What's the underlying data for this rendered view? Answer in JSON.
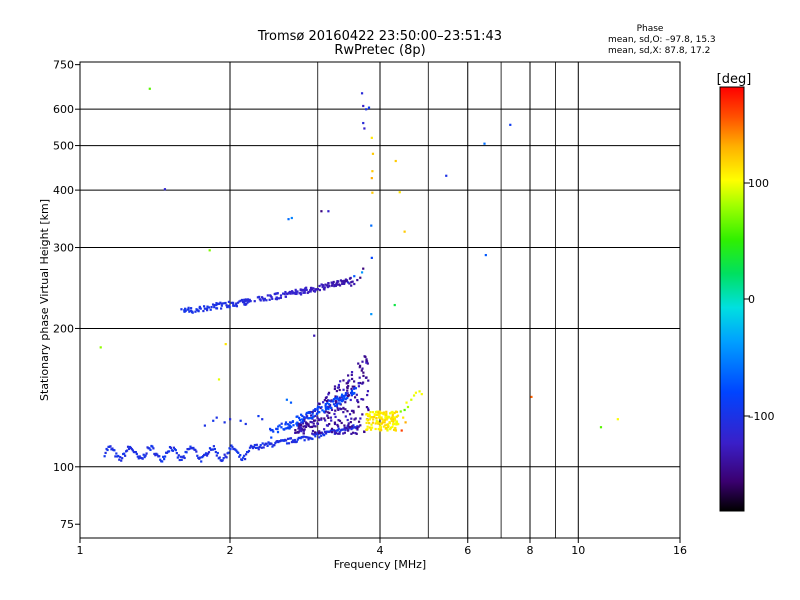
{
  "header": {
    "title_line1": "Tromsø 20160422 23:50:00–23:51:43",
    "title_line2": "RwPretec (8p)",
    "phase_title": "Phase",
    "phase_o": "mean, sd,O: –97.8, 15.3",
    "phase_x": "mean, sd,X:  87.8, 17.2"
  },
  "colorbar": {
    "unit_label": "[deg]",
    "min": -180,
    "max": 180,
    "ticks": [
      "100",
      "0",
      "–100"
    ]
  },
  "chart_data": {
    "type": "scatter",
    "xlabel": "Frequency [MHz]",
    "ylabel": "Stationary phase Virtual Height [km]",
    "xscale": "log2",
    "yscale": "log",
    "xlim": [
      1,
      16
    ],
    "ylim": [
      70,
      760
    ],
    "x_ticks": [
      1,
      2,
      4,
      6,
      8,
      10,
      16
    ],
    "x_tick_labels": [
      "1",
      "2",
      "4",
      "6",
      "8",
      "10",
      "16"
    ],
    "x_grid": [
      1,
      2,
      3,
      4,
      5,
      6,
      7,
      8,
      9,
      10,
      11,
      12,
      13,
      14,
      15,
      16
    ],
    "x_grid_major": [
      2,
      4,
      6,
      8,
      10
    ],
    "y_ticks": [
      75,
      100,
      200,
      300,
      400,
      500,
      600,
      750
    ],
    "y_tick_labels": [
      "75",
      "100",
      "200",
      "300",
      "400",
      "500",
      "600",
      "750"
    ],
    "y_grid": [
      100,
      200,
      300,
      400,
      500,
      600
    ],
    "grid": true,
    "color_scale": "rainbow phase",
    "points": [
      [
        1.38,
        665,
        60
      ],
      [
        1.48,
        402,
        -115
      ],
      [
        1.82,
        296,
        70
      ],
      [
        1.1,
        182,
        75
      ],
      [
        1.96,
        185,
        110
      ],
      [
        1.9,
        155,
        95
      ],
      [
        3.68,
        650,
        -110
      ],
      [
        3.7,
        610,
        -120
      ],
      [
        3.75,
        600,
        -100
      ],
      [
        3.8,
        605,
        -90
      ],
      [
        3.7,
        560,
        -110
      ],
      [
        3.72,
        545,
        -120
      ],
      [
        3.85,
        520,
        110
      ],
      [
        3.87,
        480,
        120
      ],
      [
        3.86,
        440,
        120
      ],
      [
        3.85,
        425,
        130
      ],
      [
        3.86,
        395,
        120
      ],
      [
        3.84,
        335,
        -60
      ],
      [
        3.85,
        285,
        -80
      ],
      [
        3.84,
        215,
        -40
      ],
      [
        4.3,
        463,
        120
      ],
      [
        4.38,
        396,
        110
      ],
      [
        4.48,
        325,
        120
      ],
      [
        4.28,
        225,
        30
      ],
      [
        5.43,
        430,
        -100
      ],
      [
        6.48,
        505,
        -60
      ],
      [
        6.52,
        289,
        -70
      ],
      [
        7.3,
        555,
        -90
      ],
      [
        8.05,
        142,
        150
      ],
      [
        11.1,
        122,
        60
      ],
      [
        12.0,
        127,
        100
      ],
      [
        2.62,
        346,
        -60
      ],
      [
        2.66,
        348,
        -50
      ],
      [
        3.05,
        360,
        -150
      ],
      [
        3.15,
        360,
        -120
      ],
      [
        2.6,
        140,
        -60
      ],
      [
        2.65,
        138,
        -70
      ],
      [
        2.95,
        193,
        -130
      ],
      [
        2.28,
        129,
        -90
      ],
      [
        2.32,
        127,
        -100
      ],
      [
        2.1,
        126,
        -95
      ],
      [
        2.15,
        124,
        -100
      ],
      [
        1.85,
        126,
        -95
      ],
      [
        1.88,
        128,
        -100
      ],
      [
        1.95,
        125,
        -100
      ],
      [
        2.0,
        127,
        -110
      ],
      [
        1.78,
        123,
        -100
      ],
      [
        3.55,
        250,
        -130
      ],
      [
        3.6,
        255,
        -140
      ],
      [
        3.65,
        258,
        -150
      ],
      [
        3.7,
        270,
        -150
      ],
      [
        3.68,
        265,
        -40
      ],
      [
        3.55,
        260,
        -70
      ],
      [
        3.5,
        248,
        -135
      ],
      [
        3.45,
        252,
        -100
      ],
      [
        4.55,
        135,
        80
      ],
      [
        4.62,
        140,
        90
      ],
      [
        4.68,
        143,
        95
      ],
      [
        4.72,
        145,
        100
      ],
      [
        4.8,
        146,
        95
      ],
      [
        4.85,
        144,
        100
      ],
      [
        4.4,
        132,
        70
      ],
      [
        4.45,
        128,
        110
      ],
      [
        4.5,
        125,
        130
      ],
      [
        4.42,
        120,
        160
      ],
      [
        4.48,
        133,
        60
      ],
      [
        4.52,
        138,
        100
      ]
    ]
  }
}
